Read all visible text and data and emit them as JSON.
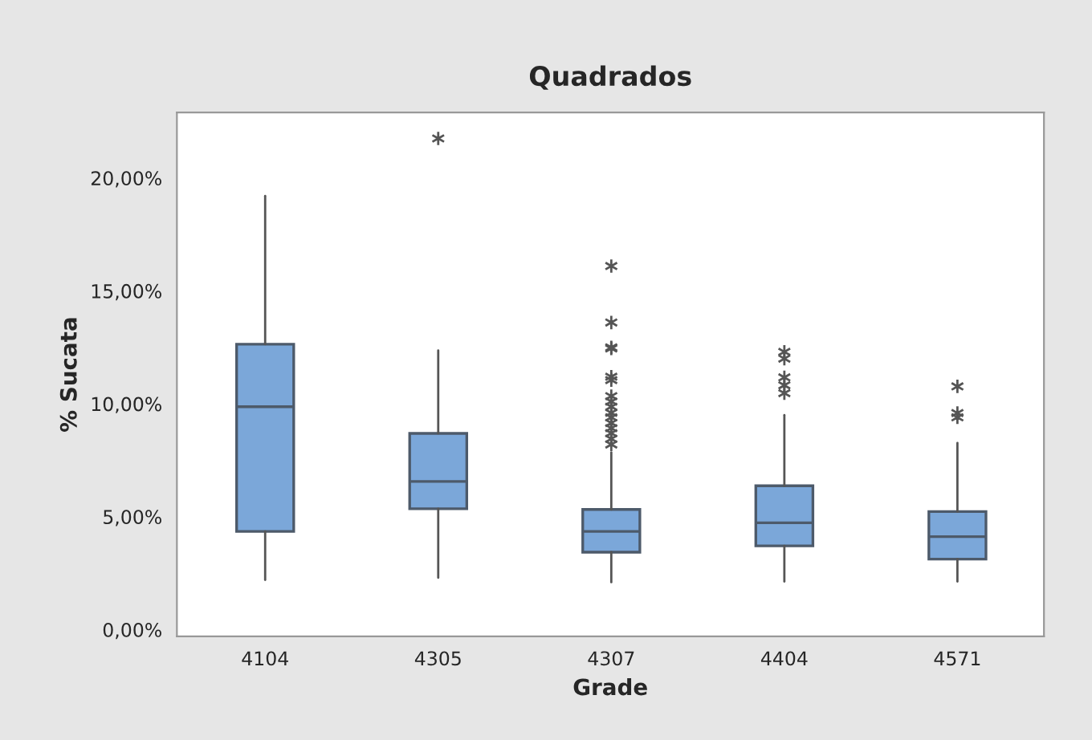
{
  "chart_data": {
    "type": "box",
    "title": "Quadrados",
    "xlabel": "Grade",
    "ylabel": "% Sucata",
    "categories": [
      "4104",
      "4305",
      "4307",
      "4404",
      "4571"
    ],
    "boxes": [
      {
        "low": 2.2,
        "q1": 4.35,
        "median": 9.87,
        "q3": 12.64,
        "high": 19.2
      },
      {
        "low": 2.3,
        "q1": 5.35,
        "median": 6.56,
        "q3": 8.69,
        "high": 12.36,
        "outliers": [
          21.75
        ]
      },
      {
        "low": 2.1,
        "q1": 3.43,
        "median": 4.35,
        "q3": 5.32,
        "high": 7.85,
        "outliers": [
          16.1,
          13.6,
          12.5,
          12.45,
          11.2,
          11.05,
          10.34,
          10.1,
          9.87,
          9.6,
          9.4,
          9.15,
          8.92,
          8.7,
          8.45,
          8.2
        ]
      },
      {
        "low": 2.13,
        "q1": 3.71,
        "median": 4.73,
        "q3": 6.37,
        "high": 9.5,
        "outliers": [
          12.3,
          12.0,
          11.17,
          10.82,
          10.47
        ]
      },
      {
        "low": 2.13,
        "q1": 3.12,
        "median": 4.12,
        "q3": 5.23,
        "high": 8.27,
        "outliers": [
          10.77,
          9.59,
          9.4
        ]
      }
    ],
    "color": "#7ba7d9",
    "marker": "star",
    "ylim": [
      -0.3,
      22.9
    ],
    "yticks": [
      {
        "value": 0,
        "label": "0,00%"
      },
      {
        "value": 5,
        "label": "5,00%"
      },
      {
        "value": 10,
        "label": "10,00%"
      },
      {
        "value": 15,
        "label": "15,00%"
      },
      {
        "value": 20,
        "label": "20,00%"
      }
    ],
    "grid": false,
    "legend": false
  }
}
